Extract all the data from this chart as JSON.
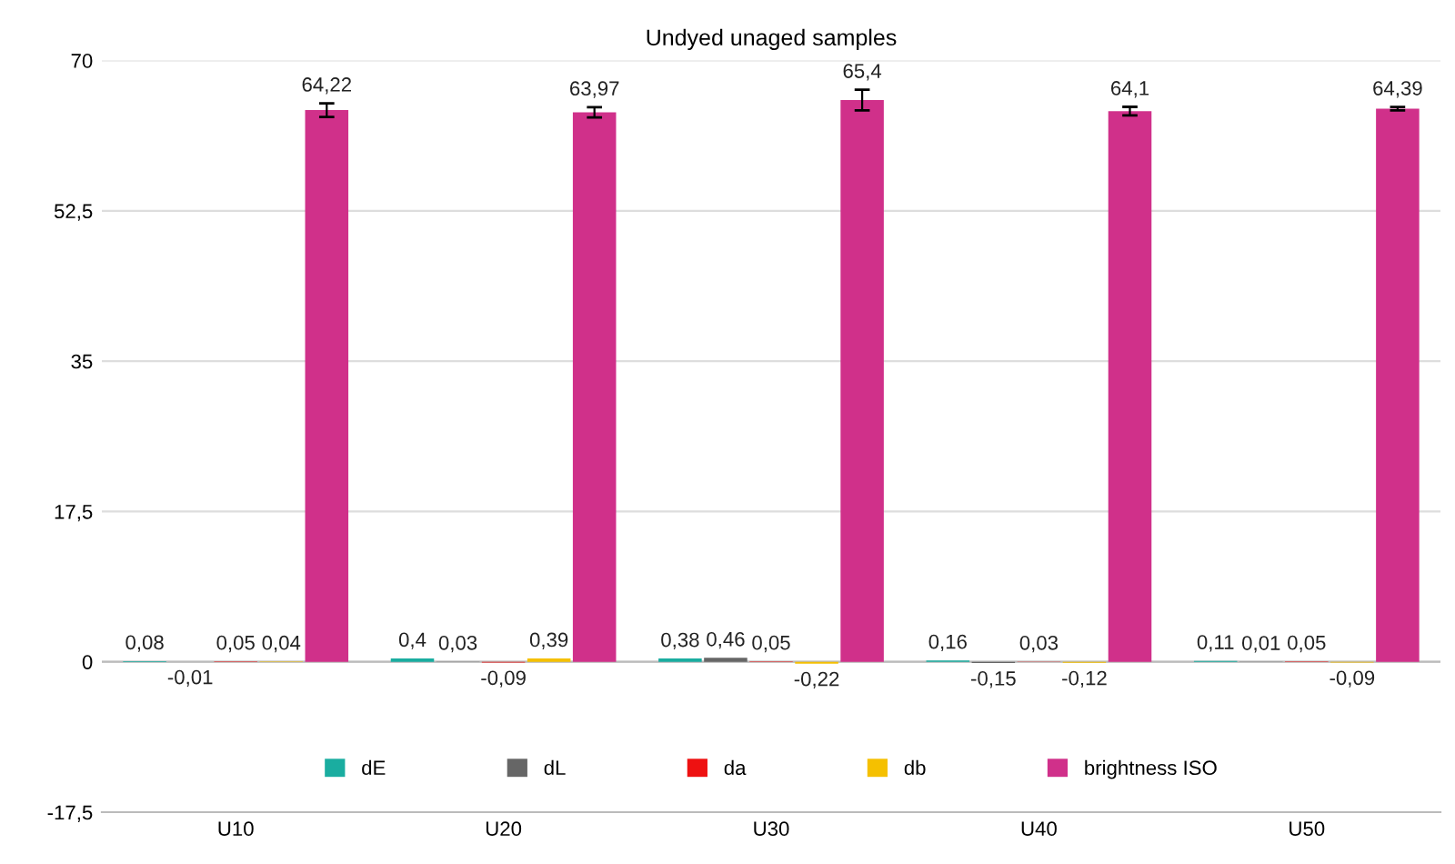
{
  "chart_data": {
    "type": "bar",
    "title": "Undyed unaged samples",
    "categories": [
      "U10",
      "U20",
      "U30",
      "U40",
      "U50"
    ],
    "series": [
      {
        "name": "dE",
        "color": "#1aada0",
        "values": [
          0.08,
          0.4,
          0.38,
          0.16,
          0.11
        ],
        "value_labels": [
          "0,08",
          "0,4",
          "0,38",
          "0,16",
          "0,11"
        ]
      },
      {
        "name": "dL",
        "color": "#666666",
        "values": [
          -0.01,
          0.03,
          0.46,
          -0.15,
          0.01
        ],
        "value_labels": [
          "-0,01",
          "0,03",
          "0,46",
          "-0,15",
          "0,01"
        ]
      },
      {
        "name": "da",
        "color": "#ee1111",
        "values": [
          0.05,
          -0.09,
          0.05,
          0.03,
          0.05
        ],
        "value_labels": [
          "0,05",
          "-0,09",
          "0,05",
          "0,03",
          "0,05"
        ]
      },
      {
        "name": "db",
        "color": "#f5c000",
        "values": [
          0.04,
          0.39,
          -0.22,
          -0.12,
          -0.09
        ],
        "value_labels": [
          "0,04",
          "0,39",
          "-0,22",
          "-0,12",
          "-0,09"
        ]
      },
      {
        "name": "brightness ISO",
        "color": "#d0308a",
        "values": [
          64.22,
          63.97,
          65.4,
          64.1,
          64.39
        ],
        "value_labels": [
          "64,22",
          "63,97",
          "65,4",
          "64,1",
          "64,39"
        ],
        "errors": [
          0.8,
          0.6,
          1.2,
          0.5,
          0.2
        ]
      }
    ],
    "ylim": [
      -17.5,
      70
    ],
    "yticks": [
      {
        "value": -17.5,
        "label": "-17,5"
      },
      0,
      {
        "value": 17.5,
        "label": "17,5"
      },
      {
        "value": 35,
        "label": "35"
      },
      {
        "value": 52.5,
        "label": "52,5"
      },
      70
    ],
    "grid": "y",
    "legend": "bottom"
  }
}
